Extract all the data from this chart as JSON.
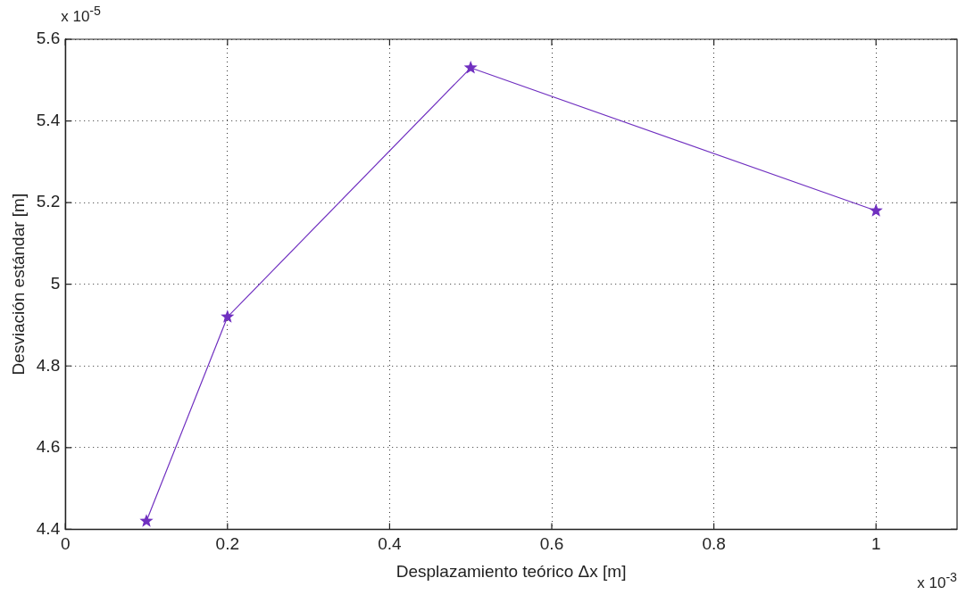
{
  "chart_data": {
    "type": "line",
    "xlabel": "Desplazamiento teórico Δx [m]",
    "ylabel": "Desviación estándar [m]",
    "annotations": [
      "x 10$^{-5}$",
      "x 10$^{-3}$"
    ],
    "x": [
      0.1,
      0.2,
      0.5,
      1
    ],
    "series": [
      {
        "color": "#7030c0",
        "values": [
          4.42,
          4.92,
          5.53,
          5.18
        ]
      }
    ],
    "xlim": [
      0,
      1.1
    ],
    "xticks": [
      0,
      0.2,
      0.4,
      0.6,
      0.8,
      1
    ],
    "ylim": [
      4.4,
      5.6
    ],
    "yticks": [
      4.4,
      4.6,
      4.8,
      5,
      5.2,
      5.4,
      5.6
    ],
    "grid": true,
    "legend": false,
    "marker": "star",
    "line_style": "solid"
  }
}
